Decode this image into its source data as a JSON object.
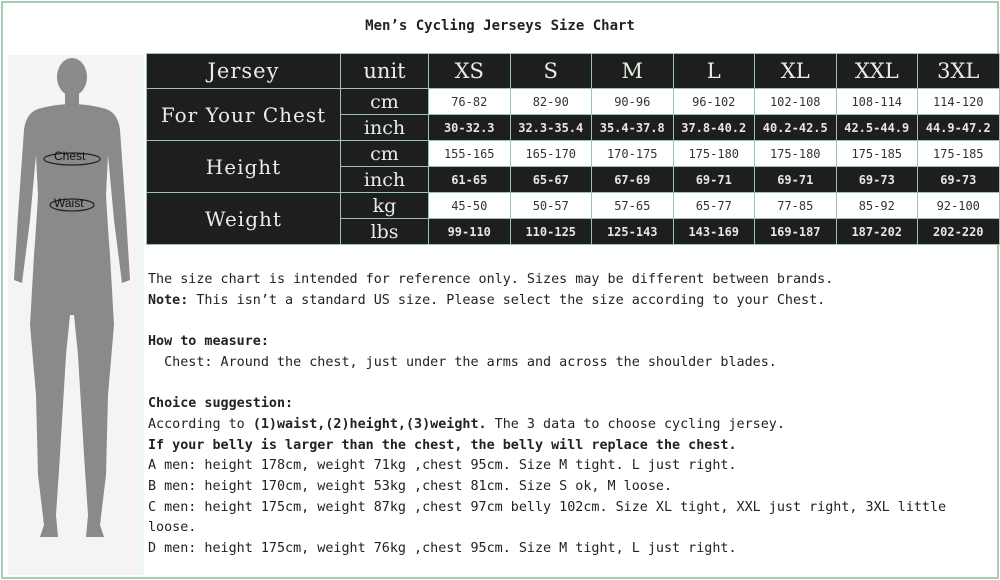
{
  "title": "Men’s Cycling Jerseys Size Chart",
  "figure": {
    "chest_label": "Chest",
    "waist_label": "Waist"
  },
  "table": {
    "header": {
      "label": "Jersey",
      "unit": "unit",
      "sizes": [
        "XS",
        "S",
        "M",
        "L",
        "XL",
        "XXL",
        "3XL"
      ]
    },
    "groups": [
      {
        "label": "For Your Chest",
        "rows": [
          {
            "unit": "cm",
            "values": [
              "76-82",
              "82-90",
              "90-96",
              "96-102",
              "102-108",
              "108-114",
              "114-120"
            ]
          },
          {
            "unit": "inch",
            "values": [
              "30-32.3",
              "32.3-35.4",
              "35.4-37.8",
              "37.8-40.2",
              "40.2-42.5",
              "42.5-44.9",
              "44.9-47.2"
            ]
          }
        ]
      },
      {
        "label": "Height",
        "rows": [
          {
            "unit": "cm",
            "values": [
              "155-165",
              "165-170",
              "170-175",
              "175-180",
              "175-180",
              "175-185",
              "175-185"
            ]
          },
          {
            "unit": "inch",
            "values": [
              "61-65",
              "65-67",
              "67-69",
              "69-71",
              "69-71",
              "69-73",
              "69-73"
            ]
          }
        ]
      },
      {
        "label": "Weight",
        "rows": [
          {
            "unit": "kg",
            "values": [
              "45-50",
              "50-57",
              "57-65",
              "65-77",
              "77-85",
              "85-92",
              "92-100"
            ]
          },
          {
            "unit": "lbs",
            "values": [
              "99-110",
              "110-125",
              "125-143",
              "143-169",
              "169-187",
              "187-202",
              "202-220"
            ]
          }
        ]
      }
    ]
  },
  "notes": {
    "line1": "The size chart is intended for reference only. Sizes may be different between brands.",
    "note_label": "Note:",
    "note_text": " This isn’t a standard US size. Please select the size according to your Chest.",
    "measure_heading": "How to measure:",
    "measure_text": "  Chest: Around the chest, just under the arms and across the shoulder blades.",
    "choice_heading": "Choice suggestion:",
    "choice_prefix": "According to ",
    "choice_bold": "(1)waist,(2)height,(3)weight.",
    "choice_suffix": " The 3 data to choose cycling jersey.",
    "belly": "If your belly is larger than the chest, the belly will replace the chest.",
    "examples": [
      "A men: height 178cm, weight 71kg ,chest 95cm. Size M tight. L just right.",
      "B men: height 170cm, weight 53kg ,chest 81cm. Size S ok, M loose.",
      "C men: height 175cm, weight 87kg ,chest 97cm belly 102cm. Size XL tight, XXL just right, 3XL little loose.",
      "D men: height 175cm, weight 76kg ,chest 95cm. Size M tight, L just right."
    ]
  }
}
